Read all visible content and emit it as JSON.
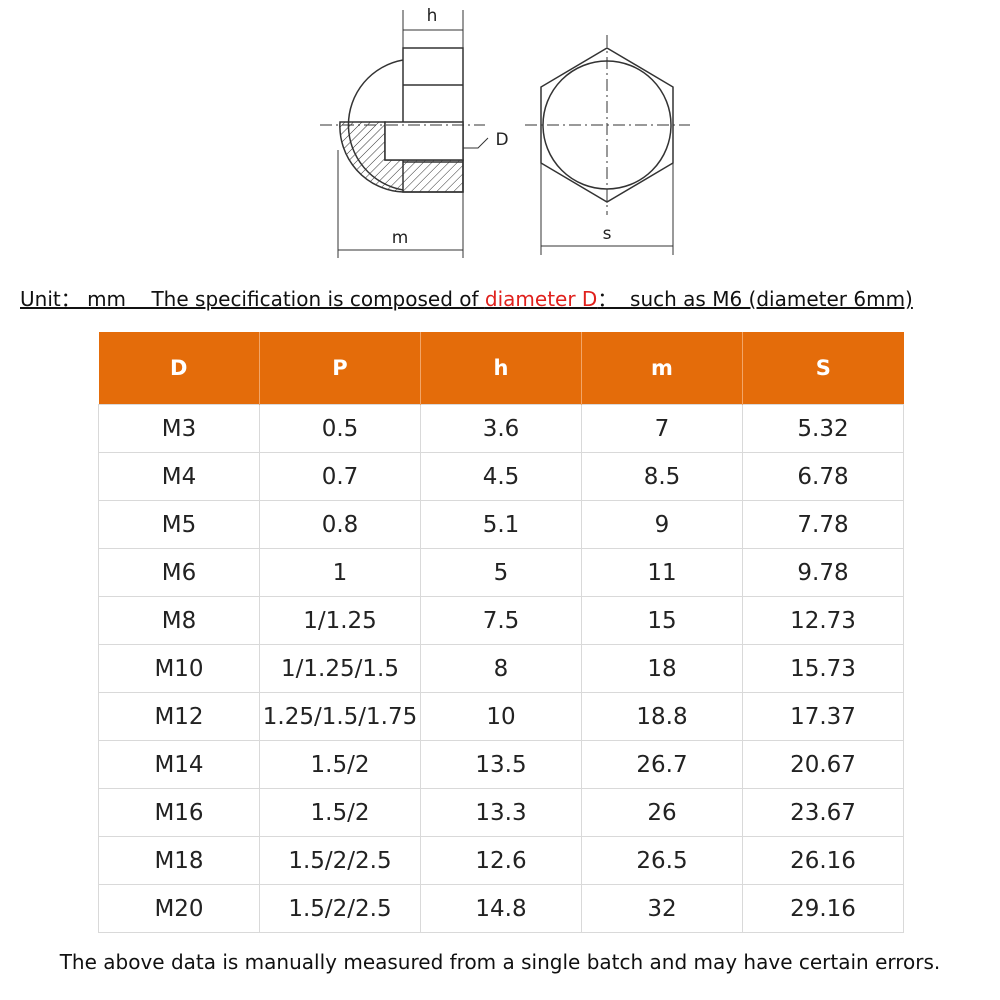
{
  "drawing": {
    "labels": [
      "h",
      "D",
      "m",
      "s"
    ]
  },
  "unit_line": {
    "prefix": "Unit： mm    The specification is composed of ",
    "highlight": "diameter D",
    "suffix": "：  such as M6 (diameter 6mm)"
  },
  "table": {
    "header": [
      "D",
      "P",
      "h",
      "m",
      "S"
    ],
    "rows": [
      [
        "M3",
        "0.5",
        "3.6",
        "7",
        "5.32"
      ],
      [
        "M4",
        "0.7",
        "4.5",
        "8.5",
        "6.78"
      ],
      [
        "M5",
        "0.8",
        "5.1",
        "9",
        "7.78"
      ],
      [
        "M6",
        "1",
        "5",
        "11",
        "9.78"
      ],
      [
        "M8",
        "1/1.25",
        "7.5",
        "15",
        "12.73"
      ],
      [
        "M10",
        "1/1.25/1.5",
        "8",
        "18",
        "15.73"
      ],
      [
        "M12",
        "1.25/1.5/1.75",
        "10",
        "18.8",
        "17.37"
      ],
      [
        "M14",
        "1.5/2",
        "13.5",
        "26.7",
        "20.67"
      ],
      [
        "M16",
        "1.5/2",
        "13.3",
        "26",
        "23.67"
      ],
      [
        "M18",
        "1.5/2/2.5",
        "12.6",
        "26.5",
        "26.16"
      ],
      [
        "M20",
        "1.5/2/2.5",
        "14.8",
        "32",
        "29.16"
      ]
    ]
  },
  "note": "The above data is manually measured from a single batch and may have certain errors."
}
